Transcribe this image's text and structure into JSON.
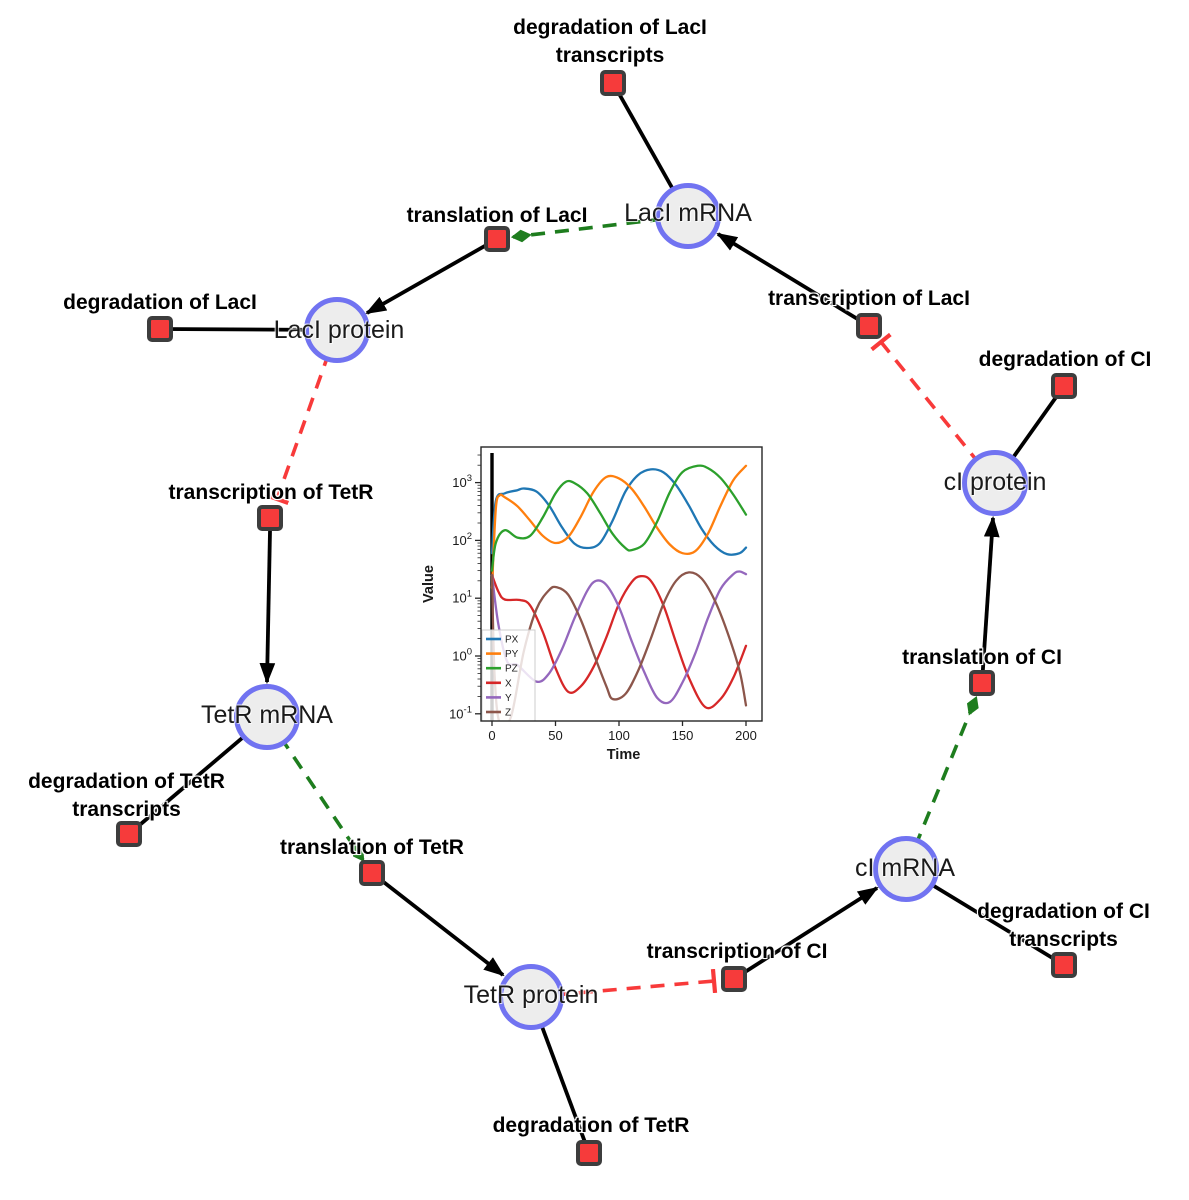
{
  "diagram": {
    "species": [
      {
        "label": "LacI mRNA"
      },
      {
        "label": "LacI protein"
      },
      {
        "label": "TetR mRNA"
      },
      {
        "label": "TetR protein"
      },
      {
        "label": "cI mRNA"
      },
      {
        "label": "cI protein"
      }
    ],
    "reactions": [
      {
        "label": "degradation of LacI transcripts"
      },
      {
        "label": "translation of LacI"
      },
      {
        "label": "degradation of LacI"
      },
      {
        "label": "transcription of LacI"
      },
      {
        "label": "degradation of CI"
      },
      {
        "label": "transcription of TetR"
      },
      {
        "label": "translation of CI"
      },
      {
        "label": "degradation of TetR transcripts"
      },
      {
        "label": "translation of TetR"
      },
      {
        "label": "transcription of CI"
      },
      {
        "label": "degradation of CI transcripts"
      },
      {
        "label": "degradation of TetR"
      }
    ],
    "colors": {
      "species_fill": "#ededed",
      "species_border": "#7173f1",
      "reaction_fill": "#f63b3b",
      "reaction_border": "#3d3d3d",
      "edge_solid": "#000000",
      "edge_modifier": "#1e7d1e",
      "edge_inhibition": "#f83a3a"
    }
  },
  "chart_data": {
    "type": "line",
    "title": "",
    "xlabel": "Time",
    "ylabel": "Value",
    "x_ticks": [
      0,
      50,
      100,
      150,
      200
    ],
    "y_tick_exponents": [
      -1,
      0,
      1,
      2,
      3
    ],
    "xlim": [
      -8,
      210
    ],
    "y_scale": "log",
    "ylim": [
      0.079,
      4000
    ],
    "grid": false,
    "legend_position": "lower left",
    "annotations": [
      {
        "type": "vline",
        "x": 0,
        "color": "#000000"
      }
    ],
    "series": [
      {
        "name": "PX",
        "color": "#1f77b4",
        "x": [
          0,
          3,
          10,
          20,
          25,
          35,
          45,
          55,
          65,
          75,
          85,
          95,
          105,
          115,
          125,
          135,
          145,
          155,
          165,
          175,
          185,
          195,
          200
        ],
        "y": [
          60,
          480,
          650,
          740,
          790,
          700,
          400,
          170,
          88,
          74,
          90,
          220,
          700,
          1350,
          1690,
          1500,
          900,
          400,
          160,
          82,
          58,
          60,
          75
        ]
      },
      {
        "name": "PY",
        "color": "#ff7f0e",
        "x": [
          0,
          3,
          6,
          10,
          20,
          30,
          40,
          50,
          60,
          70,
          80,
          90,
          100,
          110,
          120,
          130,
          140,
          150,
          160,
          170,
          180,
          190,
          200
        ],
        "y": [
          15,
          350,
          600,
          560,
          390,
          220,
          120,
          90,
          115,
          260,
          700,
          1250,
          1180,
          780,
          380,
          165,
          85,
          60,
          65,
          130,
          400,
          1100,
          1950
        ]
      },
      {
        "name": "PZ",
        "color": "#2ca02c",
        "x": [
          0,
          3,
          10,
          20,
          30,
          40,
          50,
          58,
          65,
          75,
          85,
          95,
          105,
          110,
          120,
          130,
          140,
          150,
          162,
          170,
          180,
          190,
          200
        ],
        "y": [
          30,
          90,
          150,
          112,
          120,
          250,
          650,
          1030,
          980,
          650,
          300,
          130,
          74,
          68,
          88,
          210,
          680,
          1520,
          1950,
          1780,
          1200,
          620,
          280
        ]
      },
      {
        "name": "X",
        "color": "#d62728",
        "x": [
          0,
          5,
          10,
          22,
          30,
          40,
          50,
          60,
          70,
          80,
          90,
          100,
          110,
          117,
          125,
          135,
          145,
          155,
          168,
          180,
          190,
          200
        ],
        "y": [
          25,
          13,
          9.5,
          9.3,
          7.5,
          2.6,
          0.62,
          0.24,
          0.3,
          0.65,
          2.1,
          8,
          19,
          24,
          20,
          7.5,
          1.7,
          0.42,
          0.13,
          0.18,
          0.42,
          1.5
        ]
      },
      {
        "name": "Y",
        "color": "#9467bd",
        "x": [
          0,
          5,
          12,
          20,
          35,
          45,
          55,
          65,
          75,
          82,
          90,
          100,
          110,
          120,
          130,
          140,
          150,
          160,
          170,
          180,
          190,
          195,
          200
        ],
        "y": [
          25,
          3.5,
          0.8,
          0.7,
          0.36,
          0.5,
          1.3,
          4.5,
          13.5,
          20,
          17,
          7,
          1.8,
          0.52,
          0.19,
          0.16,
          0.35,
          1.1,
          4.5,
          14.5,
          26,
          29,
          26
        ]
      },
      {
        "name": "Z",
        "color": "#8c564b",
        "x": [
          0,
          2,
          6,
          15,
          25,
          35,
          45,
          51,
          60,
          70,
          80,
          90,
          95,
          105,
          115,
          125,
          135,
          145,
          155,
          165,
          175,
          185,
          195,
          200
        ],
        "y": [
          25,
          0.5,
          0.07,
          0.09,
          1.2,
          6.5,
          13.8,
          15.5,
          11.5,
          4.2,
          1.1,
          0.3,
          0.18,
          0.22,
          0.55,
          2,
          8,
          20,
          28,
          22,
          9.5,
          2.7,
          0.55,
          0.14
        ]
      }
    ]
  }
}
